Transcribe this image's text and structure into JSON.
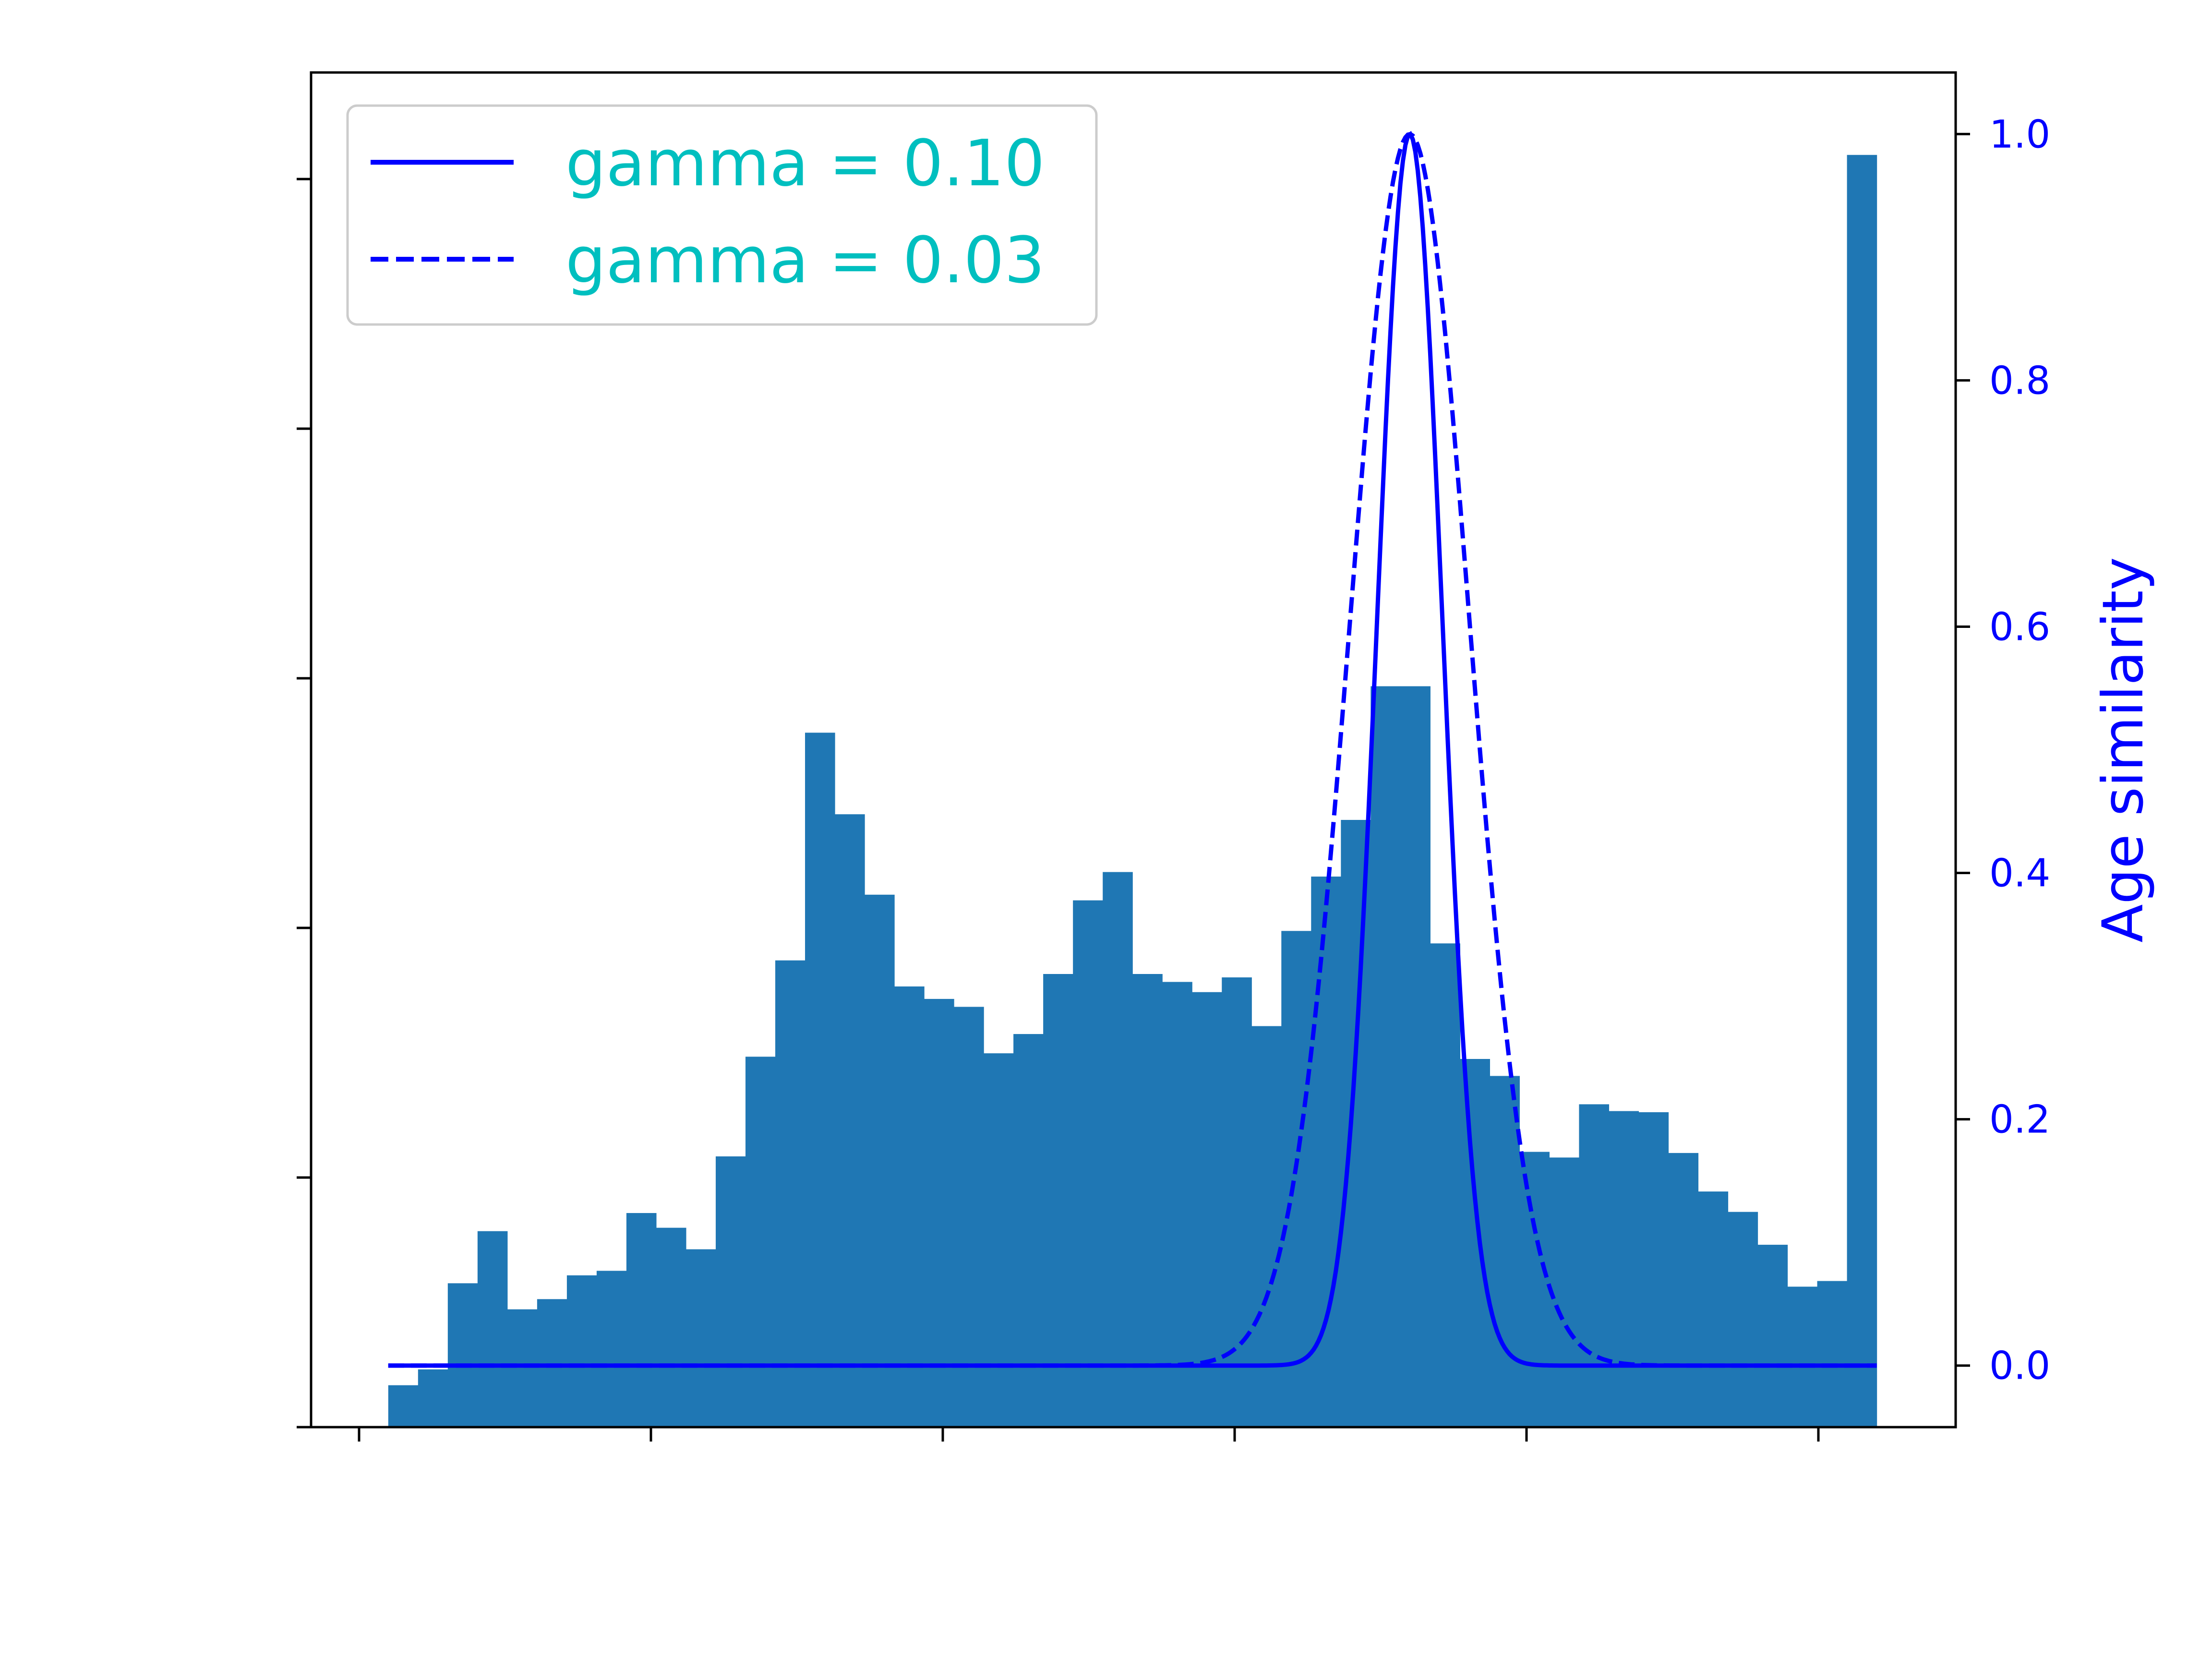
{
  "chart_data": {
    "type": "bar",
    "title": "",
    "xlabel": "",
    "ylabel_left": "",
    "ylabel_right": "Age similarity",
    "x_tick_values": [
      0,
      20,
      40,
      60,
      80,
      100
    ],
    "x_tick_labels_visible": false,
    "left_y_tick_count": 6,
    "left_y_tick_labels_visible": false,
    "right_ylim": [
      -0.05,
      1.05
    ],
    "right_yticks": [
      "0.0",
      "0.2",
      "0.4",
      "0.6",
      "0.8",
      "1.0"
    ],
    "right_axis_color": "#0000ff",
    "histogram": {
      "color": "#1f77b4",
      "bin_start": 2,
      "bin_width": 2.04,
      "values": [
        37,
        51,
        127,
        173,
        104,
        113,
        134,
        138,
        189,
        176,
        157,
        239,
        327,
        412,
        613,
        541,
        470,
        389,
        378,
        371,
        330,
        347,
        400,
        465,
        490,
        400,
        393,
        384,
        397,
        354,
        438,
        486,
        536,
        654,
        654,
        427,
        325,
        310,
        243,
        238,
        285,
        279,
        278,
        242,
        208,
        190,
        161,
        124,
        129,
        1123
      ]
    },
    "curves": {
      "center": 72,
      "x_range": [
        2,
        104
      ],
      "series": [
        {
          "name": "gamma = 0.10",
          "gamma": 0.1,
          "dash": "solid",
          "color": "#0000ff"
        },
        {
          "name": "gamma = 0.03",
          "gamma": 0.03,
          "dash": "dashed",
          "color": "#0000ff"
        }
      ]
    },
    "legend": {
      "placement": "top-left",
      "text_color": "#00bfbf"
    }
  }
}
